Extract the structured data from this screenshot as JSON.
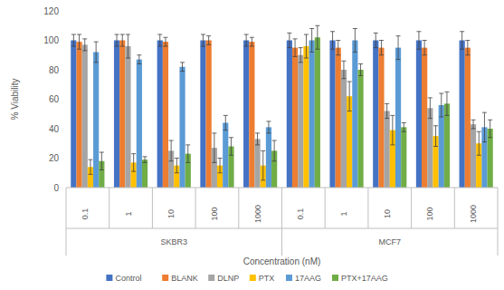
{
  "chart_data": {
    "type": "bar",
    "y_label": "% Viability",
    "x_label": "Concentration (nM)",
    "categories": [
      "0.1",
      "1",
      "10",
      "100",
      "1000",
      "0.1",
      "1",
      "10",
      "100",
      "1000"
    ],
    "group_labels": [
      "SKBR3",
      "MCF7"
    ],
    "ylim": [
      0,
      120
    ],
    "yticks": [
      0,
      20,
      40,
      60,
      80,
      100,
      120
    ],
    "grid": false,
    "legend": "bottom",
    "series": [
      {
        "name": "Control",
        "color": "#4472c4",
        "values": [
          100,
          100,
          100,
          100,
          100,
          100,
          100,
          100,
          100,
          100
        ],
        "errors": [
          4,
          4,
          4,
          4,
          4,
          5,
          6,
          5,
          6,
          6
        ]
      },
      {
        "name": "BLANK",
        "color": "#ed7d31",
        "values": [
          99,
          100,
          99,
          100,
          99,
          95,
          95,
          95,
          95,
          95
        ],
        "errors": [
          5,
          4,
          3,
          3,
          3,
          6,
          5,
          5,
          5,
          5
        ]
      },
      {
        "name": "DLNP",
        "color": "#a5a5a5",
        "values": [
          97,
          96,
          25,
          27,
          33,
          90,
          80,
          52,
          54,
          43
        ],
        "errors": [
          4,
          8,
          7,
          10,
          4,
          5,
          6,
          5,
          7,
          3
        ]
      },
      {
        "name": "PTX",
        "color": "#ffc000",
        "values": [
          14,
          17,
          15,
          15,
          15,
          96,
          62,
          39,
          35,
          30
        ],
        "errors": [
          5,
          6,
          5,
          5,
          10,
          8,
          10,
          10,
          7,
          8
        ]
      },
      {
        "name": "17AAG",
        "color": "#5b9bd5",
        "values": [
          92,
          87,
          82,
          44,
          41,
          100,
          100,
          95,
          56,
          41
        ],
        "errors": [
          7,
          3,
          3,
          5,
          4,
          8,
          8,
          8,
          8,
          10
        ]
      },
      {
        "name": "PTX+17AAG",
        "color": "#70ad47",
        "values": [
          18,
          19,
          23,
          28,
          25,
          102,
          80,
          41,
          57,
          40
        ],
        "errors": [
          6,
          2,
          6,
          6,
          7,
          8,
          4,
          3,
          8,
          6
        ]
      }
    ]
  }
}
